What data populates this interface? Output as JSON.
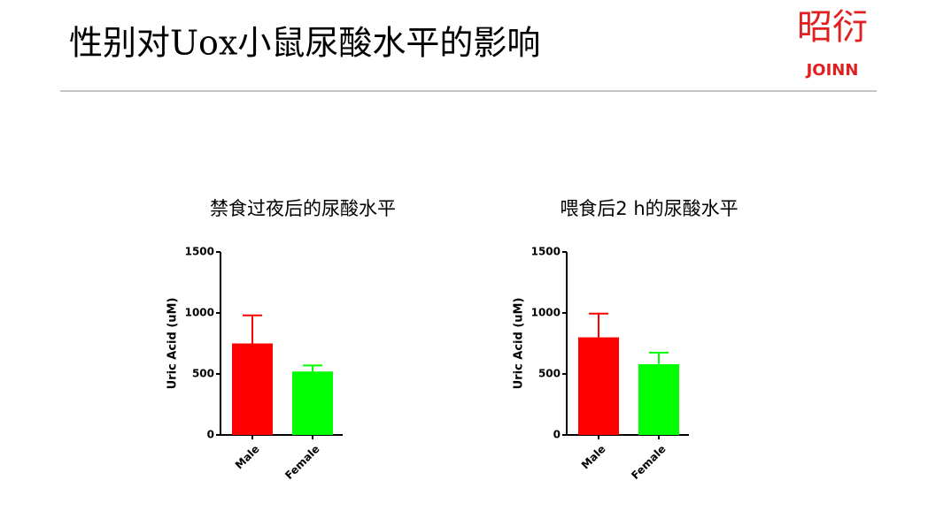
{
  "header": {
    "title": "性别对Uox小鼠尿酸水平的影响",
    "logo_cn": "昭衍",
    "logo_en": "JOINN"
  },
  "chart_data": [
    {
      "type": "bar",
      "title": "禁食过夜后的尿酸水平",
      "y_label": "Uric Acid (uM)",
      "categories": [
        "Male",
        "Female"
      ],
      "values": [
        750,
        520
      ],
      "errors": [
        230,
        50
      ],
      "colors": [
        "#ff0000",
        "#00ff00"
      ],
      "ylim": [
        0,
        1500
      ],
      "yticks": [
        0,
        500,
        1000,
        1500
      ]
    },
    {
      "type": "bar",
      "title": "喂食后2 h的尿酸水平",
      "y_label": "Uric Acid (uM)",
      "categories": [
        "Male",
        "Female"
      ],
      "values": [
        800,
        580
      ],
      "errors": [
        195,
        95
      ],
      "colors": [
        "#ff0000",
        "#00ff00"
      ],
      "ylim": [
        0,
        1500
      ],
      "yticks": [
        0,
        500,
        1000,
        1500
      ]
    }
  ]
}
